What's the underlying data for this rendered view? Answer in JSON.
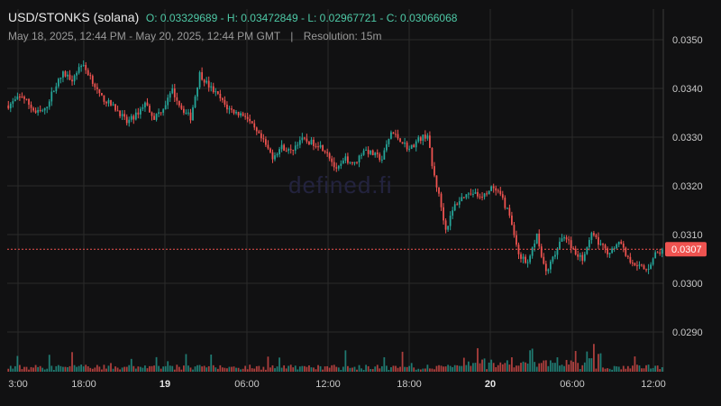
{
  "header": {
    "symbol": "USD/STONKS (solana)",
    "ohlc": "O: 0.03329689 - H: 0.03472849 - L: 0.02967721 - C: 0.03066068",
    "range": "May 18, 2025, 12:44 PM - May 20, 2025, 12:44 PM GMT",
    "separator": "|",
    "resolution": "Resolution: 15m"
  },
  "watermark": "defined.fi",
  "colors": {
    "up": "#26a69a",
    "down": "#ef5350",
    "background": "#111112",
    "grid": "#2a2a2a",
    "price_line": "#ef5350"
  },
  "chart_data": {
    "type": "candlestick",
    "x_tick_labels": [
      "3:00",
      "18:00",
      "19",
      "06:00",
      "12:00",
      "18:00",
      "20",
      "06:00",
      "12:00"
    ],
    "y_tick_labels": [
      "0.0350",
      "0.0340",
      "0.0330",
      "0.0320",
      "0.0310",
      "0.0300",
      "0.0290"
    ],
    "ylim": [
      0.0284,
      0.0357
    ],
    "current_price": 0.0307,
    "current_price_label": "0.0307",
    "summary": {
      "open": 0.03329689,
      "high": 0.03472849,
      "low": 0.02967721,
      "close": 0.03066068
    },
    "close_path": [
      [
        0,
        0.03365
      ],
      [
        6,
        0.03385
      ],
      [
        12,
        0.0335
      ],
      [
        16,
        0.03355
      ],
      [
        20,
        0.034
      ],
      [
        24,
        0.0343
      ],
      [
        28,
        0.0342
      ],
      [
        32,
        0.0345
      ],
      [
        36,
        0.03425
      ],
      [
        40,
        0.03385
      ],
      [
        44,
        0.0337
      ],
      [
        48,
        0.03355
      ],
      [
        52,
        0.0333
      ],
      [
        56,
        0.03345
      ],
      [
        60,
        0.0337
      ],
      [
        64,
        0.0334
      ],
      [
        68,
        0.0336
      ],
      [
        72,
        0.03395
      ],
      [
        76,
        0.0336
      ],
      [
        80,
        0.0334
      ],
      [
        84,
        0.0343
      ],
      [
        88,
        0.03405
      ],
      [
        92,
        0.03385
      ],
      [
        96,
        0.0336
      ],
      [
        100,
        0.0335
      ],
      [
        104,
        0.03345
      ],
      [
        108,
        0.03315
      ],
      [
        112,
        0.0329
      ],
      [
        116,
        0.0326
      ],
      [
        120,
        0.0328
      ],
      [
        124,
        0.0327
      ],
      [
        128,
        0.03295
      ],
      [
        132,
        0.0329
      ],
      [
        136,
        0.03285
      ],
      [
        140,
        0.0327
      ],
      [
        144,
        0.0323
      ],
      [
        148,
        0.03255
      ],
      [
        152,
        0.03245
      ],
      [
        156,
        0.03275
      ],
      [
        160,
        0.03265
      ],
      [
        164,
        0.03255
      ],
      [
        168,
        0.0331
      ],
      [
        172,
        0.03295
      ],
      [
        176,
        0.03275
      ],
      [
        180,
        0.03295
      ],
      [
        184,
        0.03305
      ],
      [
        186,
        0.0324
      ],
      [
        189,
        0.0318
      ],
      [
        192,
        0.0311
      ],
      [
        196,
        0.0316
      ],
      [
        200,
        0.0318
      ],
      [
        204,
        0.03185
      ],
      [
        208,
        0.03175
      ],
      [
        212,
        0.03195
      ],
      [
        216,
        0.0318
      ],
      [
        220,
        0.0314
      ],
      [
        224,
        0.0306
      ],
      [
        228,
        0.0304
      ],
      [
        232,
        0.031
      ],
      [
        236,
        0.0302
      ],
      [
        240,
        0.0306
      ],
      [
        244,
        0.031
      ],
      [
        248,
        0.0307
      ],
      [
        252,
        0.0305
      ],
      [
        256,
        0.031
      ],
      [
        260,
        0.0308
      ],
      [
        264,
        0.0306
      ],
      [
        268,
        0.0309
      ],
      [
        272,
        0.0305
      ],
      [
        276,
        0.0304
      ],
      [
        280,
        0.03025
      ],
      [
        284,
        0.0306
      ],
      [
        287,
        0.03066
      ]
    ]
  }
}
